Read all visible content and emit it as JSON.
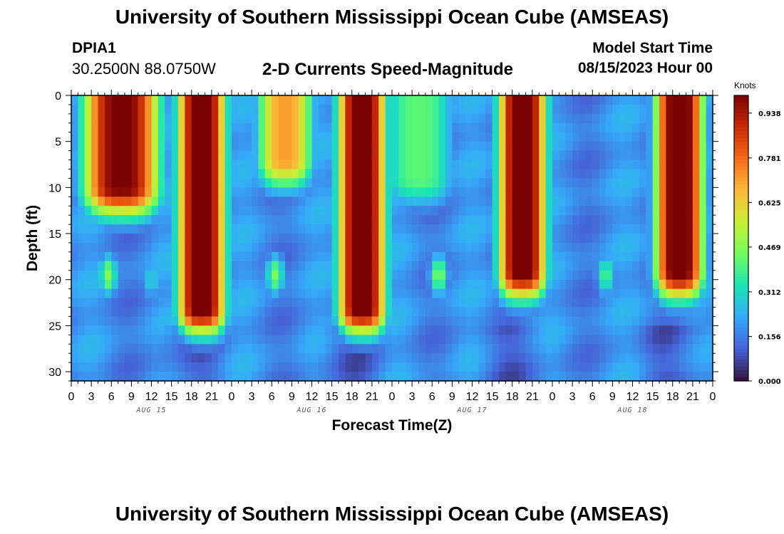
{
  "page": {
    "title_top": "University of Southern Mississippi Ocean Cube (AMSEAS)",
    "title_bottom": "University of Southern Mississippi Ocean Cube (AMSEAS)"
  },
  "station": {
    "id": "DPIA1",
    "coords": "30.2500N  88.0750W"
  },
  "product": "2-D Currents Speed-Magnitude",
  "model_start": {
    "label": "Model Start Time",
    "value": "08/15/2023 Hour 00"
  },
  "colors": {
    "background": "#ffffff",
    "axis": "#000000",
    "colormap": [
      "#30123b",
      "#4662d7",
      "#36aaf9",
      "#1ae4b6",
      "#72fe5e",
      "#c8ef34",
      "#faba39",
      "#f66b19",
      "#ca2a04",
      "#7a0403"
    ]
  },
  "chart_data": {
    "type": "heatmap",
    "xlabel": "Forecast Time(Z)",
    "ylabel": "Depth (ft)",
    "x_range_hours": [
      0,
      96
    ],
    "y_range_ft": [
      0,
      31
    ],
    "x_tick_labels": [
      "0",
      "3",
      "6",
      "9",
      "12",
      "15",
      "18",
      "21",
      "0",
      "3",
      "6",
      "9",
      "12",
      "15",
      "18",
      "21",
      "0",
      "3",
      "6",
      "9",
      "12",
      "15",
      "18",
      "21",
      "0",
      "3",
      "6",
      "9",
      "12",
      "15",
      "18",
      "21",
      "0"
    ],
    "y_ticks": [
      0,
      5,
      10,
      15,
      20,
      25,
      30
    ],
    "day_labels": [
      {
        "label": "AUG 15",
        "hour": 12
      },
      {
        "label": "AUG 16",
        "hour": 36
      },
      {
        "label": "AUG 17",
        "hour": 60
      },
      {
        "label": "AUG 18",
        "hour": 84
      }
    ],
    "colorbar": {
      "unit": "Knots",
      "min": 0.0,
      "max": 1.0,
      "tick_values": [
        0.0,
        0.156,
        0.312,
        0.469,
        0.625,
        0.781,
        0.938
      ],
      "tick_labels": [
        "0.000",
        "0.156",
        "0.312",
        "0.469",
        "0.625",
        "0.781",
        "0.938"
      ]
    },
    "surface_jets": [
      {
        "center_hour": 7.5,
        "width_hours": 5.5,
        "peak_knots": 0.95,
        "bottom_ft": 10
      },
      {
        "center_hour": 19.5,
        "width_hours": 3.5,
        "peak_knots": 1.0,
        "bottom_ft": 23
      },
      {
        "center_hour": 32,
        "width_hours": 4,
        "peak_knots": 0.65,
        "bottom_ft": 7
      },
      {
        "center_hour": 43.5,
        "width_hours": 3.5,
        "peak_knots": 1.0,
        "bottom_ft": 23
      },
      {
        "center_hour": 52,
        "width_hours": 5,
        "peak_knots": 0.36,
        "bottom_ft": 9
      },
      {
        "center_hour": 67.5,
        "width_hours": 3.5,
        "peak_knots": 1.0,
        "bottom_ft": 19
      },
      {
        "center_hour": 91,
        "width_hours": 3.5,
        "peak_knots": 1.0,
        "bottom_ft": 19
      }
    ],
    "subsurface_blobs": [
      {
        "center_hour": 5.5,
        "depth_ft": 19.5,
        "peak_knots": 0.47
      },
      {
        "center_hour": 12,
        "depth_ft": 20,
        "peak_knots": 0.3
      },
      {
        "center_hour": 30.5,
        "depth_ft": 19.5,
        "peak_knots": 0.45
      },
      {
        "center_hour": 55,
        "depth_ft": 19.5,
        "peak_knots": 0.46
      },
      {
        "center_hour": 80,
        "depth_ft": 19.5,
        "peak_knots": 0.4
      }
    ],
    "background_knots": 0.18
  }
}
